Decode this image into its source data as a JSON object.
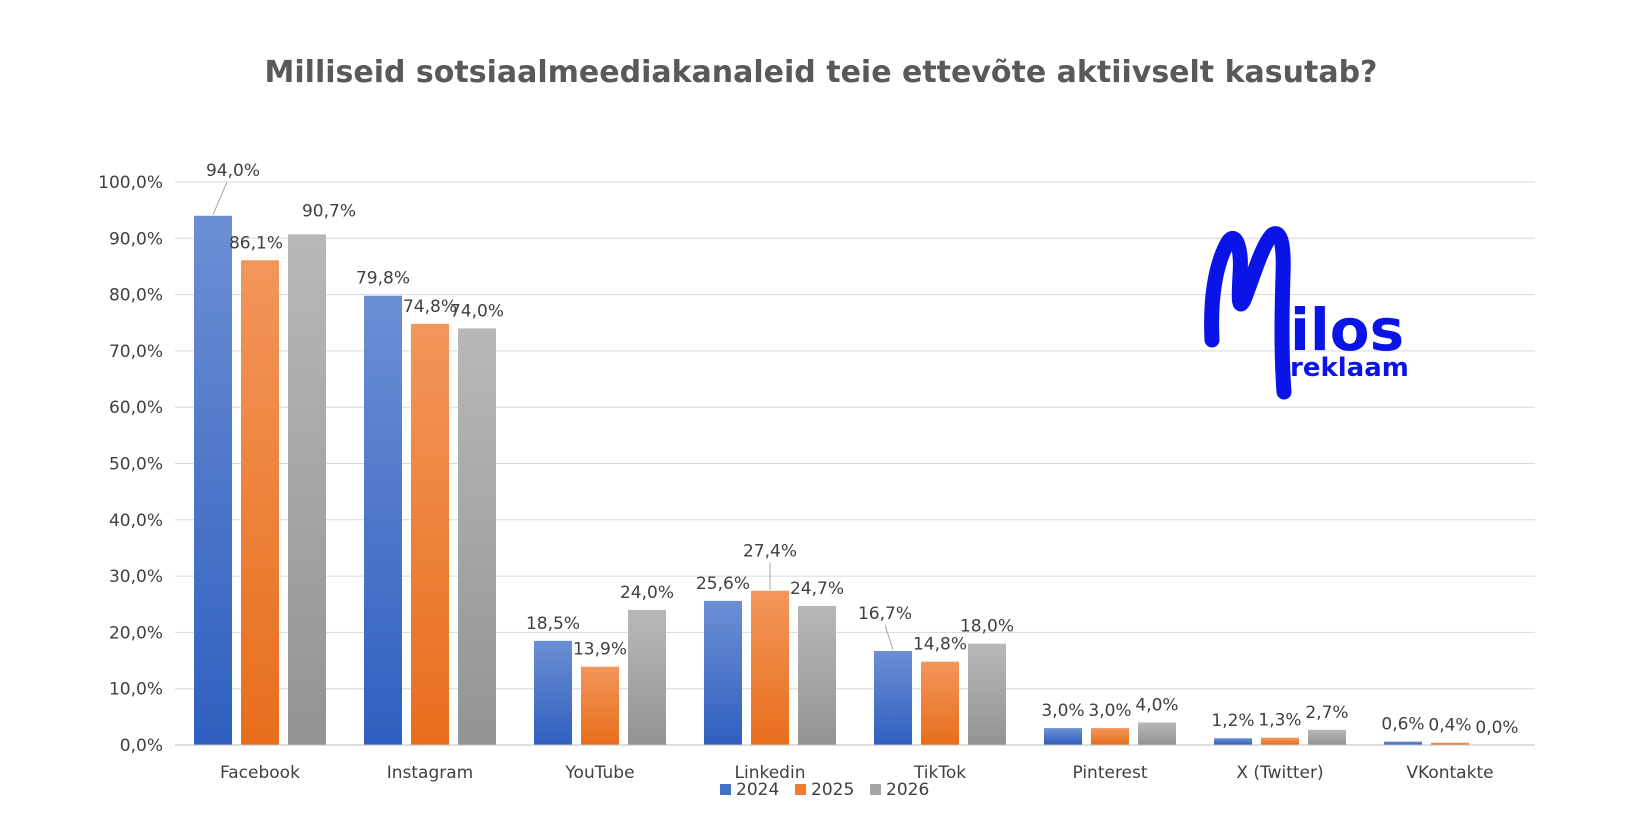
{
  "chart_data": {
    "type": "bar",
    "title": "Milliseid sotsiaalmeediakanaleid teie ettevõte aktiivselt kasutab?",
    "xlabel": "",
    "ylabel": "",
    "ylim": [
      0,
      100
    ],
    "yticks": [
      "0,0%",
      "10,0%",
      "20,0%",
      "30,0%",
      "40,0%",
      "50,0%",
      "60,0%",
      "70,0%",
      "80,0%",
      "90,0%",
      "100,0%"
    ],
    "categories": [
      "Facebook",
      "Instagram",
      "YouTube",
      "Linkedin",
      "TikTok",
      "Pinterest",
      "X (Twitter)",
      "VKontakte"
    ],
    "series": [
      {
        "name": "2024",
        "color": "#4472c4",
        "values": [
          94.0,
          79.8,
          18.5,
          25.6,
          16.7,
          3.0,
          1.2,
          0.6
        ],
        "labels": [
          "94,0%",
          "79,8%",
          "18,5%",
          "25,6%",
          "16,7%",
          "3,0%",
          "1,2%",
          "0,6%"
        ]
      },
      {
        "name": "2025",
        "color": "#ed7d31",
        "values": [
          86.1,
          74.8,
          13.9,
          27.4,
          14.8,
          3.0,
          1.3,
          0.4
        ],
        "labels": [
          "86,1%",
          "74,8%",
          "13,9%",
          "27,4%",
          "14,8%",
          "3,0%",
          "1,3%",
          "0,4%"
        ]
      },
      {
        "name": "2026",
        "color": "#a5a5a5",
        "values": [
          90.7,
          74.0,
          24.0,
          24.7,
          18.0,
          4.0,
          2.7,
          0.0
        ],
        "labels": [
          "90,7%",
          "74,0%",
          "24,0%",
          "24,7%",
          "18,0%",
          "4,0%",
          "2,7%",
          "0,0%"
        ]
      }
    ],
    "grid": true,
    "legend": "bottom-center"
  },
  "logo": {
    "main": "Milos",
    "sub": "reklaam",
    "color": "#0a14e6"
  }
}
